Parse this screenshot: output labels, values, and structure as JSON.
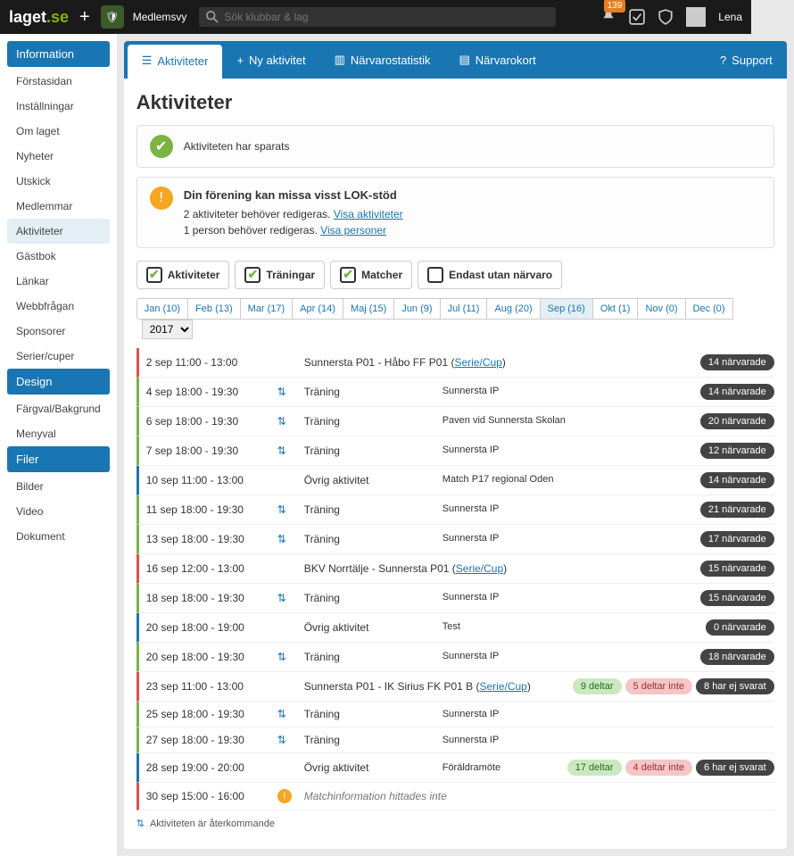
{
  "topbar": {
    "logo_main": "laget",
    "logo_suffix": ".se",
    "membership": "Medlemsvy",
    "search_placeholder": "Sök klubbar & lag",
    "notif_count": "139",
    "user_name": "Lena"
  },
  "sidebar": {
    "sections": [
      {
        "title": "Information",
        "items": [
          "Förstasidan",
          "Inställningar",
          "Om laget",
          "Nyheter",
          "Utskick",
          "Medlemmar",
          "Aktiviteter",
          "Gästbok",
          "Länkar",
          "Webbfrågan",
          "Sponsorer",
          "Serier/cuper"
        ],
        "active": "Aktiviteter"
      },
      {
        "title": "Design",
        "items": [
          "Färgval/Bakgrund",
          "Menyval"
        ]
      },
      {
        "title": "Filer",
        "items": [
          "Bilder",
          "Video",
          "Dokument"
        ]
      }
    ]
  },
  "tabs": {
    "activities": "Aktiviteter",
    "new": "Ny aktivitet",
    "stats": "Närvarostatistik",
    "card": "Närvarokort",
    "support": "Support"
  },
  "page_title": "Aktiviteter",
  "saved_msg": "Aktiviteten har sparats",
  "warn_box": {
    "title": "Din förening kan missa visst LOK-stöd",
    "line1_a": "2 aktiviteter behöver redigeras. ",
    "line1_link": "Visa aktiviteter",
    "line2_a": "1 person behöver redigeras. ",
    "line2_link": "Visa personer"
  },
  "filters": {
    "activities": "Aktiviteter",
    "trainings": "Träningar",
    "matches": "Matcher",
    "only_no": "Endast utan närvaro"
  },
  "months": [
    {
      "l": "Jan (10)"
    },
    {
      "l": "Feb (13)"
    },
    {
      "l": "Mar (17)"
    },
    {
      "l": "Apr (14)"
    },
    {
      "l": "Maj (15)"
    },
    {
      "l": "Jun (9)"
    },
    {
      "l": "Jul (11)"
    },
    {
      "l": "Aug (20)"
    },
    {
      "l": "Sep (16)",
      "a": true
    },
    {
      "l": "Okt (1)"
    },
    {
      "l": "Nov (0)"
    },
    {
      "l": "Dec (0)"
    }
  ],
  "year": "2017",
  "rows": [
    {
      "c": "red",
      "t": "2 sep 11:00 - 13:00",
      "ico": "",
      "type": "Sunnersta P01 - Håbo FF P01 (",
      "link": "Serie/Cup",
      "type2": ")",
      "loc": "",
      "b": [
        {
          "k": "dark",
          "t": "14 närvarade"
        }
      ]
    },
    {
      "c": "green",
      "t": "4 sep 18:00 - 19:30",
      "ico": "r",
      "type": "Träning",
      "loc": "Sunnersta IP",
      "b": [
        {
          "k": "dark",
          "t": "14 närvarade"
        }
      ]
    },
    {
      "c": "green",
      "t": "6 sep 18:00 - 19:30",
      "ico": "r",
      "type": "Träning",
      "loc": "Paven vid Sunnersta Skolan",
      "b": [
        {
          "k": "dark",
          "t": "20 närvarade"
        }
      ]
    },
    {
      "c": "green",
      "t": "7 sep 18:00 - 19:30",
      "ico": "r",
      "type": "Träning",
      "loc": "Sunnersta IP",
      "b": [
        {
          "k": "dark",
          "t": "12 närvarade"
        }
      ]
    },
    {
      "c": "blue",
      "t": "10 sep 11:00 - 13:00",
      "ico": "",
      "type": "Övrig aktivitet",
      "loc": "Match P17 regional Oden",
      "b": [
        {
          "k": "dark",
          "t": "14 närvarade"
        }
      ]
    },
    {
      "c": "green",
      "t": "11 sep 18:00 - 19:30",
      "ico": "r",
      "type": "Träning",
      "loc": "Sunnersta IP",
      "b": [
        {
          "k": "dark",
          "t": "21 närvarade"
        }
      ]
    },
    {
      "c": "green",
      "t": "13 sep 18:00 - 19:30",
      "ico": "r",
      "type": "Träning",
      "loc": "Sunnersta IP",
      "b": [
        {
          "k": "dark",
          "t": "17 närvarade"
        }
      ]
    },
    {
      "c": "red",
      "t": "16 sep 12:00 - 13:00",
      "ico": "",
      "type": "BKV Norrtälje - Sunnersta P01 (",
      "link": "Serie/Cup",
      "type2": ")",
      "loc": "",
      "b": [
        {
          "k": "dark",
          "t": "15 närvarade"
        }
      ]
    },
    {
      "c": "green",
      "t": "18 sep 18:00 - 19:30",
      "ico": "r",
      "type": "Träning",
      "loc": "Sunnersta IP",
      "b": [
        {
          "k": "dark",
          "t": "15 närvarade"
        }
      ]
    },
    {
      "c": "blue",
      "t": "20 sep 18:00 - 19:00",
      "ico": "",
      "type": "Övrig aktivitet",
      "loc": "Test",
      "b": [
        {
          "k": "dark",
          "t": "0 närvarade"
        }
      ]
    },
    {
      "c": "green",
      "t": "20 sep 18:00 - 19:30",
      "ico": "r",
      "type": "Träning",
      "loc": "Sunnersta IP",
      "b": [
        {
          "k": "dark",
          "t": "18 närvarade"
        }
      ]
    },
    {
      "c": "red",
      "t": "23 sep 11:00 - 13:00",
      "ico": "",
      "type": "Sunnersta P01 - IK Sirius FK P01 B (",
      "link": "Serie/Cup",
      "type2": ")",
      "loc": "",
      "b": [
        {
          "k": "green",
          "t": "9 deltar"
        },
        {
          "k": "red",
          "t": "5 deltar inte"
        },
        {
          "k": "dark",
          "t": "8 har ej svarat"
        }
      ]
    },
    {
      "c": "green",
      "t": "25 sep 18:00 - 19:30",
      "ico": "r",
      "type": "Träning",
      "loc": "Sunnersta IP",
      "b": []
    },
    {
      "c": "green",
      "t": "27 sep 18:00 - 19:30",
      "ico": "r",
      "type": "Träning",
      "loc": "Sunnersta IP",
      "b": []
    },
    {
      "c": "blue",
      "t": "28 sep 19:00 - 20:00",
      "ico": "",
      "type": "Övrig aktivitet",
      "loc": "Föräldramöte",
      "b": [
        {
          "k": "green",
          "t": "17 deltar"
        },
        {
          "k": "red",
          "t": "4 deltar inte"
        },
        {
          "k": "dark",
          "t": "6 har ej svarat"
        }
      ]
    },
    {
      "c": "red",
      "t": "30 sep 15:00 - 16:00",
      "ico": "w",
      "type_i": "Matchinformation hittades inte",
      "loc": "",
      "b": []
    }
  ],
  "footer_note": "Aktiviteten är återkommande"
}
